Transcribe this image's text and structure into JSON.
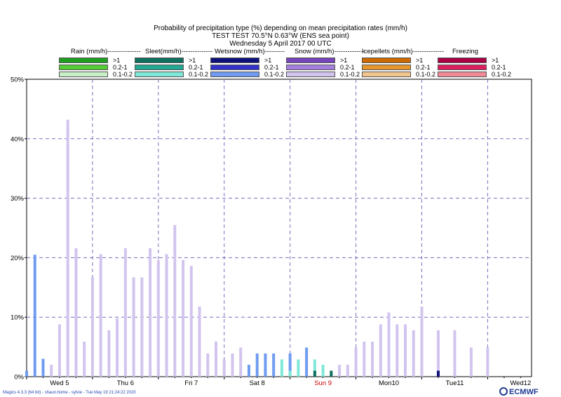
{
  "title_lines": [
    "Probability of precipitation type (%) depending on mean precipitation rates (mm/h)",
    "TEST TEST 70.5°N 0.63°W (ENS sea point)",
    "Wednesday  5 April 2017 00 UTC"
  ],
  "legend": {
    "header": [
      {
        "label": "Rain (mm/h)---------------"
      },
      {
        "label": "Sleet(mm/h)--------------"
      },
      {
        "label": "Wetsnow (mm/h)---------"
      },
      {
        "label": "Snow (mm/h)--------------"
      },
      {
        "label": "Icepellets (mm/h)--------------"
      },
      {
        "label": "Freezing"
      }
    ],
    "classes": [
      ">1",
      "0.2-1",
      "0.1-0.2"
    ],
    "groups": [
      {
        "name": "Rain",
        "colors": [
          "#1f9e1f",
          "#55cc33",
          "#c8f0c8"
        ]
      },
      {
        "name": "Sleet",
        "colors": [
          "#0f7060",
          "#22a893",
          "#7fe8d8"
        ]
      },
      {
        "name": "Wetsnow",
        "colors": [
          "#10107a",
          "#3333cc",
          "#6f9cf0"
        ]
      },
      {
        "name": "Snow",
        "colors": [
          "#7744bb",
          "#a57fdd",
          "#d2c4ee"
        ]
      },
      {
        "name": "Icepellets",
        "colors": [
          "#cc6a00",
          "#e6962d",
          "#f2c48e"
        ]
      },
      {
        "name": "Freezing",
        "colors": [
          "#aa0044",
          "#dd1f5e",
          "#f08a96"
        ]
      }
    ]
  },
  "chart_data": {
    "type": "bar",
    "title": "Probability of precipitation type (%) depending on mean precipitation rates (mm/h)",
    "ylabel": "",
    "xlabel": "",
    "ylim": [
      0,
      50
    ],
    "y_ticks": [
      "0%",
      "10%",
      "20%",
      "30%",
      "40%",
      "50%"
    ],
    "x_time_range_hours": [
      0,
      168
    ],
    "x_ticks": [
      {
        "label": "Wed 5",
        "hour": 12,
        "color": "#000000"
      },
      {
        "label": "Thu 6",
        "hour": 36,
        "color": "#000000"
      },
      {
        "label": "Fri 7",
        "hour": 60,
        "color": "#000000"
      },
      {
        "label": "Sat 8",
        "hour": 84,
        "color": "#000000"
      },
      {
        "label": "Sun 9",
        "hour": 108,
        "color": "#cc0000"
      },
      {
        "label": "Mon10",
        "hour": 132,
        "color": "#000000"
      },
      {
        "label": "Tue11",
        "hour": 156,
        "color": "#000000"
      },
      {
        "label": "Wed12",
        "hour": 180,
        "color": "#000000"
      }
    ],
    "grid": true,
    "bar_width_hours": 0.6,
    "bars": [
      {
        "hour": 0,
        "series": "Wetsnow 0.1-0.2",
        "value": 1
      },
      {
        "hour": 3,
        "series": "Wetsnow 0.1-0.2",
        "value": 20.5
      },
      {
        "hour": 6,
        "series": "Wetsnow 0.1-0.2",
        "value": 3
      },
      {
        "hour": 9,
        "series": "Snow 0.1-0.2",
        "value": 2
      },
      {
        "hour": 12,
        "series": "Snow 0.1-0.2",
        "value": 8.8
      },
      {
        "hour": 15,
        "series": "Snow 0.1-0.2",
        "value": 43.2
      },
      {
        "hour": 18,
        "series": "Snow 0.1-0.2",
        "value": 21.6
      },
      {
        "hour": 21,
        "series": "Snow 0.1-0.2",
        "value": 5.9
      },
      {
        "hour": 24,
        "series": "Snow 0.1-0.2",
        "value": 16.7
      },
      {
        "hour": 27,
        "series": "Snow 0.1-0.2",
        "value": 20.6
      },
      {
        "hour": 30,
        "series": "Snow 0.1-0.2",
        "value": 7.8
      },
      {
        "hour": 33,
        "series": "Snow 0.1-0.2",
        "value": 9.8
      },
      {
        "hour": 36,
        "series": "Snow 0.1-0.2",
        "value": 21.6
      },
      {
        "hour": 39,
        "series": "Snow 0.1-0.2",
        "value": 16.7
      },
      {
        "hour": 42,
        "series": "Snow 0.1-0.2",
        "value": 16.7
      },
      {
        "hour": 45,
        "series": "Snow 0.1-0.2",
        "value": 21.6
      },
      {
        "hour": 48,
        "series": "Snow 0.1-0.2",
        "value": 19.6
      },
      {
        "hour": 51,
        "series": "Snow 0.1-0.2",
        "value": 20.6
      },
      {
        "hour": 54,
        "series": "Snow 0.1-0.2",
        "value": 25.5
      },
      {
        "hour": 57,
        "series": "Snow 0.1-0.2",
        "value": 19.6
      },
      {
        "hour": 60,
        "series": "Snow 0.1-0.2",
        "value": 18.6
      },
      {
        "hour": 63,
        "series": "Snow 0.1-0.2",
        "value": 11.8
      },
      {
        "hour": 66,
        "series": "Snow 0.1-0.2",
        "value": 3.9
      },
      {
        "hour": 69,
        "series": "Snow 0.1-0.2",
        "value": 5.9
      },
      {
        "hour": 72,
        "series": "Snow 0.1-0.2",
        "value": 2.9
      },
      {
        "hour": 75,
        "series": "Snow 0.1-0.2",
        "value": 3.9
      },
      {
        "hour": 78,
        "series": "Snow 0.1-0.2",
        "value": 4.9
      },
      {
        "hour": 81,
        "series": "Wetsnow 0.1-0.2",
        "value": 2
      },
      {
        "hour": 84,
        "series": "Wetsnow 0.1-0.2",
        "value": 3.9
      },
      {
        "hour": 87,
        "series": "Wetsnow 0.1-0.2",
        "value": 3.9
      },
      {
        "hour": 90,
        "series": "Wetsnow 0.1-0.2",
        "value": 3.9
      },
      {
        "hour": 93,
        "series": "Sleet 0.1-0.2",
        "value": 2.9
      },
      {
        "hour": 96,
        "series": "Wetsnow 0.1-0.2",
        "value": 3.9
      },
      {
        "hour": 99,
        "series": "Sleet 0.1-0.2",
        "value": 2.9
      },
      {
        "hour": 102,
        "series": "Wetsnow 0.1-0.2",
        "value": 4.9
      },
      {
        "hour": 105,
        "series": "Sleet 0.1-0.2",
        "value": 2.9
      },
      {
        "hour": 108,
        "series": "Sleet 0.1-0.2",
        "value": 2
      },
      {
        "hour": 111,
        "series": "Sleet >1",
        "value": 1
      },
      {
        "hour": 114,
        "series": "Snow 0.1-0.2",
        "value": 2
      },
      {
        "hour": 117,
        "series": "Snow 0.1-0.2",
        "value": 2
      },
      {
        "hour": 120,
        "series": "Snow 0.1-0.2",
        "value": 4.9
      },
      {
        "hour": 123,
        "series": "Snow 0.1-0.2",
        "value": 5.9
      },
      {
        "hour": 126,
        "series": "Snow 0.1-0.2",
        "value": 5.9
      },
      {
        "hour": 129,
        "series": "Snow 0.1-0.2",
        "value": 8.8
      },
      {
        "hour": 132,
        "series": "Snow 0.1-0.2",
        "value": 10.8
      },
      {
        "hour": 135,
        "series": "Snow 0.1-0.2",
        "value": 8.8
      },
      {
        "hour": 138,
        "series": "Snow 0.1-0.2",
        "value": 8.8
      },
      {
        "hour": 141,
        "series": "Snow 0.1-0.2",
        "value": 7.8
      },
      {
        "hour": 144,
        "series": "Snow 0.1-0.2",
        "value": 11.8
      },
      {
        "hour": 150,
        "series": "Snow 0.1-0.2",
        "value": 7.8
      },
      {
        "hour": 156,
        "series": "Snow 0.1-0.2",
        "value": 7.8
      },
      {
        "hour": 162,
        "series": "Snow 0.1-0.2",
        "value": 4.9
      },
      {
        "hour": 168,
        "series": "Snow 0.1-0.2",
        "value": 4.9
      }
    ],
    "stacked_extra": [
      {
        "hour": 96,
        "series": "Sleet 0.1-0.2",
        "value": 1
      },
      {
        "hour": 105,
        "series": "Sleet >1",
        "value": 1
      },
      {
        "hour": 150,
        "series": "Wetsnow >1",
        "value": 1
      }
    ]
  },
  "footer": "Magics 4.3.3 (64 bit) - shaun.home - sylvie - Tue May 19 21:24:22 2020",
  "logo": "ECMWF"
}
